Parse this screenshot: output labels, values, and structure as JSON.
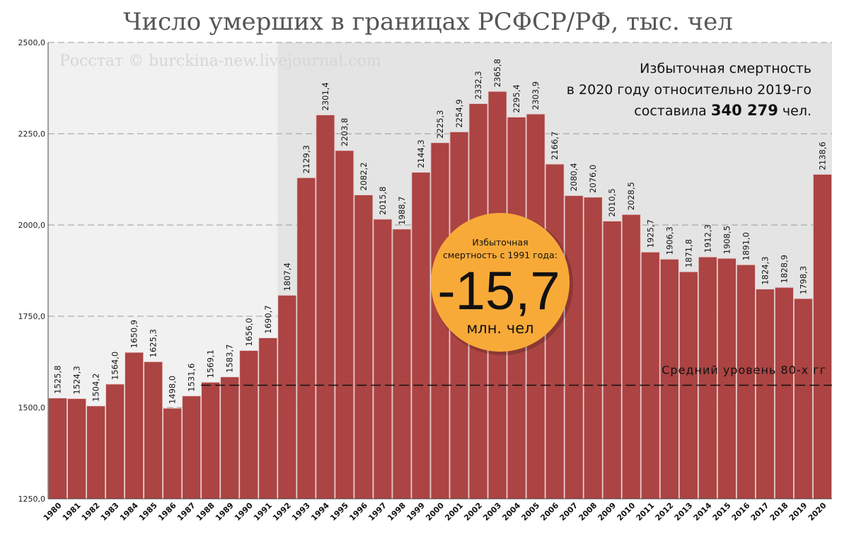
{
  "chart_data": {
    "type": "bar",
    "title": "Число умерших в границах РСФСР/РФ, тыс. чел",
    "watermark": "Росстат © burckina-new.livejournal.com",
    "xlabel": "",
    "ylabel": "",
    "ylim": [
      1250,
      2500
    ],
    "yticks": [
      "1250,0",
      "1500,0",
      "1750,0",
      "2000,0",
      "2250,0",
      "2500,0"
    ],
    "grid": true,
    "bar_color": "#ab4443",
    "categories": [
      "1980",
      "1981",
      "1982",
      "1983",
      "1984",
      "1985",
      "1986",
      "1987",
      "1988",
      "1989",
      "1990",
      "1991",
      "1992",
      "1993",
      "1994",
      "1995",
      "1996",
      "1997",
      "1998",
      "1999",
      "2000",
      "2001",
      "2002",
      "2003",
      "2004",
      "2005",
      "2006",
      "2007",
      "2008",
      "2009",
      "2010",
      "2011",
      "2012",
      "2013",
      "2014",
      "2015",
      "2016",
      "2017",
      "2018",
      "2019",
      "2020"
    ],
    "values": [
      1525.8,
      1524.3,
      1504.2,
      1564.0,
      1650.9,
      1625.3,
      1498.0,
      1531.6,
      1569.1,
      1583.7,
      1656.0,
      1690.7,
      1807.4,
      2129.3,
      2301.4,
      2203.8,
      2082.2,
      2015.8,
      1988.7,
      2144.3,
      2225.3,
      2254.9,
      2332.3,
      2365.8,
      2295.4,
      2303.9,
      2166.7,
      2080.4,
      2076.0,
      2010.5,
      2028.5,
      1925.7,
      1906.3,
      1871.8,
      1912.3,
      1908.5,
      1891.0,
      1824.3,
      1828.9,
      1798.3,
      2138.6
    ],
    "labels": [
      "1525,8",
      "1524,3",
      "1504,2",
      "1564,0",
      "1650,9",
      "1625,3",
      "1498,0",
      "1531,6",
      "1569,1",
      "1583,7",
      "1656,0",
      "1690,7",
      "1807,4",
      "2129,3",
      "2301,4",
      "2203,8",
      "2082,2",
      "2015,8",
      "1988,7",
      "2144,3",
      "2225,3",
      "2254,9",
      "2332,3",
      "2365,8",
      "2295,4",
      "2303,9",
      "2166,7",
      "2080,4",
      "2076,0",
      "2010,5",
      "2028,5",
      "1925,7",
      "1906,3",
      "1871,8",
      "1912,3",
      "1908,5",
      "1891,0",
      "1824,3",
      "1828,9",
      "1798,3",
      "2138,6"
    ],
    "reference_line": {
      "label": "Средний уровень 80-х гг",
      "value": 1561
    },
    "annotation": {
      "line1": "Избыточная смертность",
      "line2": "в 2020 году относительно 2019-го",
      "line3_prefix": "составила ",
      "line3_value": "340 279",
      "line3_suffix": " чел."
    },
    "badge": {
      "line1": "Избыточная",
      "line2": "смертность с 1991 года:",
      "value": "-15,7",
      "unit": "млн. чел",
      "color": "#f8aa38"
    }
  }
}
